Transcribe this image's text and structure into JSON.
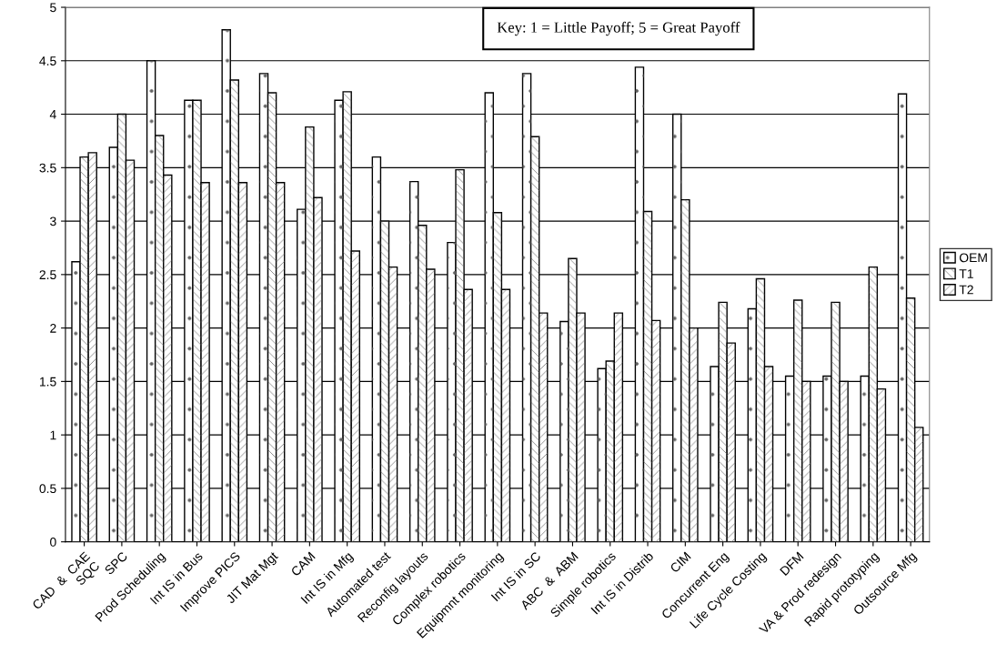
{
  "chart_data": {
    "type": "bar",
    "categories": [
      "CAD  &  CAE\nSQC",
      "SPC",
      "Prod Scheduling",
      "Int IS in Bus",
      "Improve PICS",
      "JIT Mat Mgt",
      "CAM",
      "Int IS in Mfg",
      "Automated test",
      "Reconfig layouts",
      "Complex robotics",
      "Equipmnt monitoring",
      "Int IS in SC",
      "ABC  &  ABM",
      "Simple robotics",
      "Int IS in Distrib",
      "CIM",
      "Concurrent Eng",
      "Life Cycle Costing",
      "DFM",
      "VA & Prod redesign",
      "Rapid prototyping",
      "Outsource Mfg"
    ],
    "series": [
      {
        "name": "OEM",
        "color": "#ffffff",
        "values": [
          2.62,
          3.69,
          4.5,
          4.13,
          4.79,
          4.38,
          3.11,
          4.13,
          3.6,
          3.37,
          2.8,
          4.2,
          4.38,
          2.06,
          1.62,
          4.44,
          4.0,
          1.64,
          2.18,
          1.55,
          1.55,
          1.55,
          4.19
        ]
      },
      {
        "name": "T1",
        "color": "#ffffff",
        "values": [
          3.6,
          4.0,
          3.8,
          4.13,
          4.32,
          4.2,
          3.88,
          4.21,
          3.0,
          2.96,
          3.48,
          3.08,
          3.79,
          2.65,
          1.69,
          3.09,
          3.2,
          2.24,
          2.46,
          2.26,
          2.24,
          2.57,
          2.28
        ]
      },
      {
        "name": "T2",
        "color": "#ffffff",
        "values": [
          3.64,
          3.57,
          3.43,
          3.36,
          3.36,
          3.36,
          3.22,
          2.72,
          2.57,
          2.55,
          2.36,
          2.36,
          2.14,
          2.14,
          2.14,
          2.07,
          2.0,
          1.86,
          1.64,
          1.5,
          1.5,
          1.43,
          1.07
        ]
      }
    ],
    "ylim": [
      0,
      5
    ],
    "yticks": [
      0,
      0.5,
      1,
      1.5,
      2,
      2.5,
      3,
      3.5,
      4,
      4.5,
      5
    ],
    "grid": "y",
    "legend": "right",
    "annotations": [
      "Key: 1 = Little Payoff; 5 = Great Payoff"
    ]
  }
}
